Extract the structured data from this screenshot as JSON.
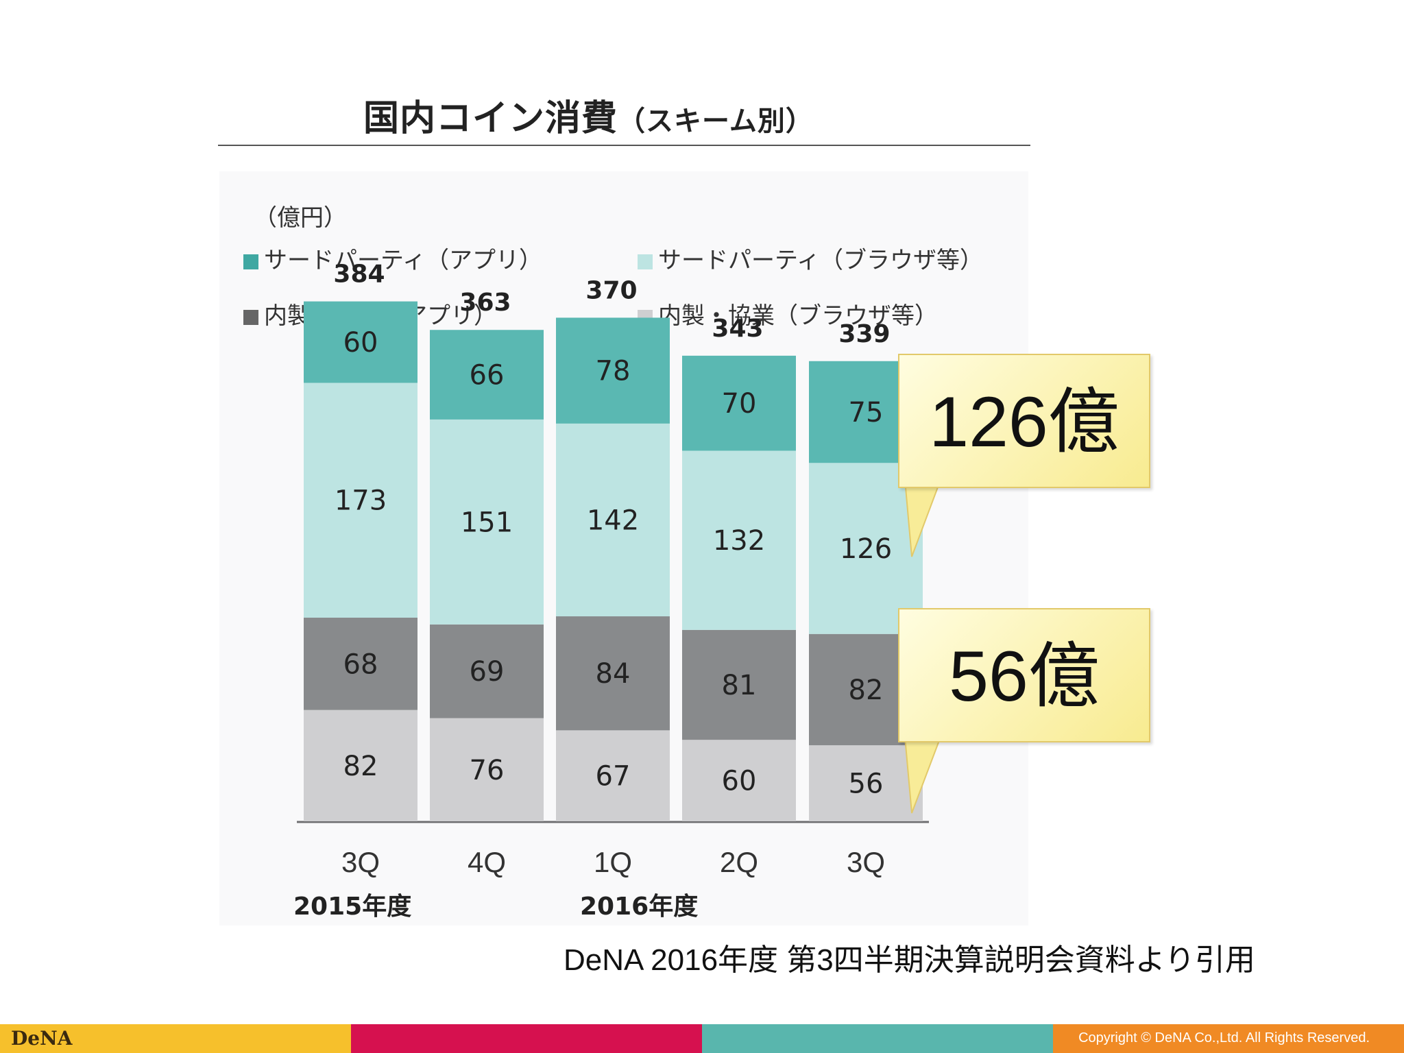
{
  "title": {
    "main": "国内コイン消費",
    "sub": "（スキーム別）"
  },
  "unit": "（億円）",
  "legend": [
    {
      "label": "サードパーティ（アプリ）",
      "color": "#5ab8b2"
    },
    {
      "label": "サードパーティ（ブラウザ等）",
      "color": "#bde4e2"
    },
    {
      "label": "内製・協業（アプリ）",
      "color": "#888a8c"
    },
    {
      "label": "内製・協業（ブラウザ等）",
      "color": "#cfcfd1"
    }
  ],
  "fiscal_years": [
    "2015年度",
    "2016年度"
  ],
  "callouts": [
    {
      "text": "126億"
    },
    {
      "text": "56億"
    }
  ],
  "source_note": "DeNA 2016年度 第3四半期決算説明会資料より引用",
  "footer": {
    "logo": "DeNA",
    "copyright": "Copyright © DeNA Co.,Ltd. All Rights Reserved.",
    "colors": [
      "#f6c02c",
      "#d6114f",
      "#59b6ad",
      "#f08a24"
    ]
  },
  "chart_data": {
    "type": "bar",
    "stacked": true,
    "categories": [
      "3Q",
      "4Q",
      "1Q",
      "2Q",
      "3Q"
    ],
    "series": [
      {
        "name": "内製・協業（ブラウザ等）",
        "values": [
          82,
          76,
          67,
          60,
          56
        ],
        "color": "#cfcfd1"
      },
      {
        "name": "内製・協業（アプリ）",
        "values": [
          68,
          69,
          84,
          81,
          82
        ],
        "color": "#888a8c"
      },
      {
        "name": "サードパーティ（ブラウザ等）",
        "values": [
          173,
          151,
          142,
          132,
          126
        ],
        "color": "#bde4e2"
      },
      {
        "name": "サードパーティ（アプリ）",
        "values": [
          60,
          66,
          78,
          70,
          75
        ],
        "color": "#5ab8b2"
      }
    ],
    "totals": [
      384,
      363,
      370,
      343,
      339
    ],
    "ylabel": "（億円）",
    "grid": false,
    "legend_position": "top"
  }
}
